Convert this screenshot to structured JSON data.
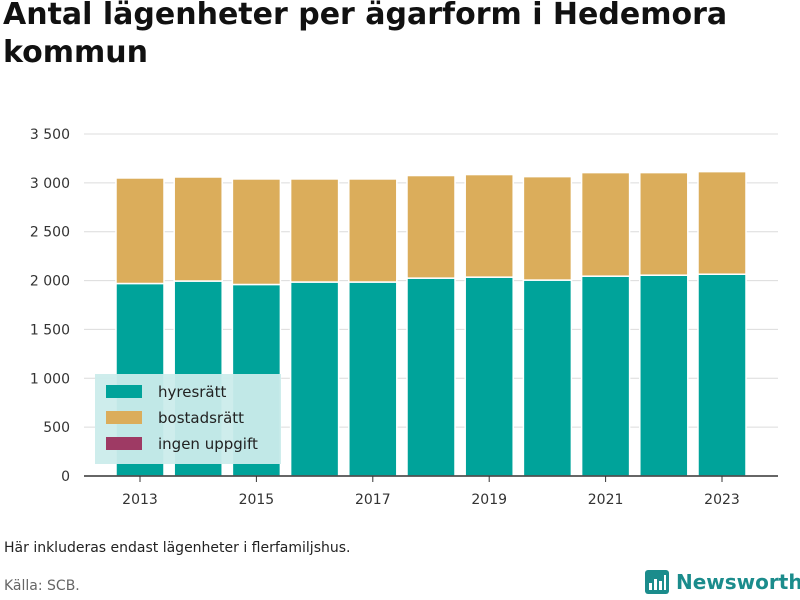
{
  "title": "Antal lägenheter per ägarform i Hedemora kommun",
  "note": "Här inkluderas endast lägenheter i flerfamiljshus.",
  "source": "Källa: SCB.",
  "brand": "Newsworthy",
  "colors": {
    "hyresratt": "#00a39a",
    "bostadsratt": "#dbad5b",
    "ingen_uppgift": "#9e3a64",
    "legend_bg": "#cbeceb",
    "brand": "#1b8c8c"
  },
  "chart_data": {
    "type": "bar",
    "stacked": true,
    "categories": [
      "2013",
      "2014",
      "2015",
      "2016",
      "2017",
      "2018",
      "2019",
      "2020",
      "2021",
      "2022",
      "2023"
    ],
    "x_tick_labels": [
      "2013",
      "2015",
      "2017",
      "2019",
      "2021",
      "2023"
    ],
    "series": [
      {
        "name": "hyresrätt",
        "color_key": "hyresratt",
        "values": [
          1970,
          1995,
          1960,
          1985,
          1985,
          2025,
          2035,
          2005,
          2045,
          2055,
          2065
        ]
      },
      {
        "name": "bostadsrätt",
        "color_key": "bostadsratt",
        "values": [
          1080,
          1065,
          1080,
          1055,
          1055,
          1050,
          1050,
          1060,
          1060,
          1050,
          1050
        ]
      },
      {
        "name": "ingen uppgift",
        "color_key": "ingen_uppgift",
        "values": [
          0,
          0,
          0,
          0,
          0,
          0,
          0,
          15,
          0,
          0,
          0
        ]
      }
    ],
    "y_ticks": [
      0,
      500,
      1000,
      1500,
      2000,
      2500,
      3000,
      3500
    ],
    "y_tick_labels": [
      "0",
      "500",
      "1 000",
      "1 500",
      "2 000",
      "2 500",
      "3 000",
      "3 500"
    ],
    "ylim": [
      0,
      3500
    ],
    "grid": true,
    "legend_position": "bottom-left",
    "xlabel": "",
    "ylabel": ""
  }
}
